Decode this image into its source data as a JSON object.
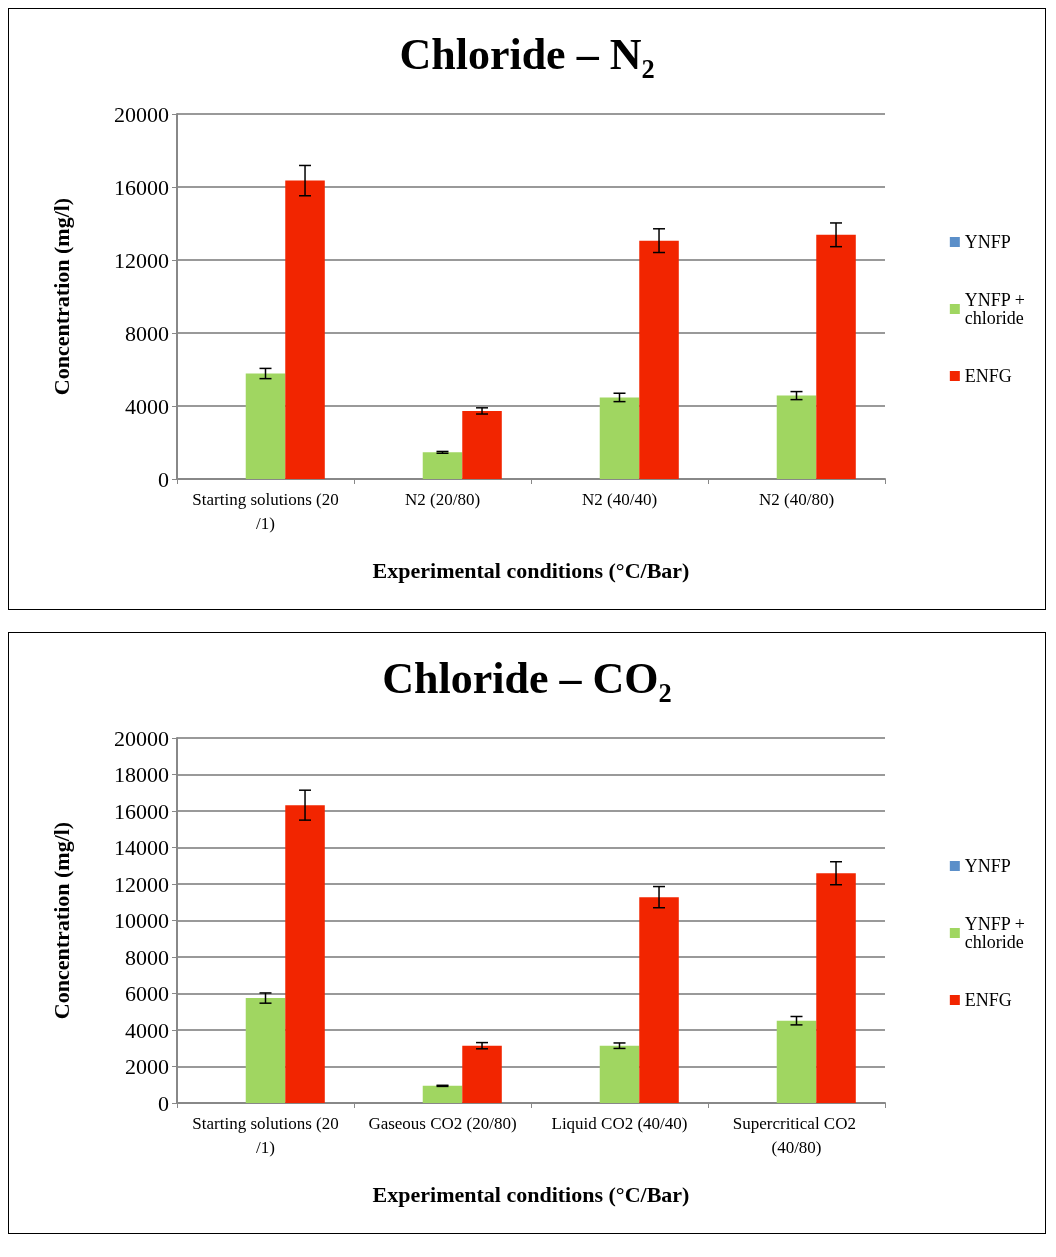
{
  "chart_data": [
    {
      "type": "bar",
      "title": "Chloride – N₂",
      "xlabel": "Experimental conditions (°C/Bar)",
      "ylabel": "Concentration (mg/l)",
      "categories": [
        "Starting solutions (20/1)",
        "N2 (20/80)",
        "N2 (40/40)",
        "N2 (40/80)"
      ],
      "series": [
        {
          "name": "YNFP",
          "color": "#5b8fc9",
          "values": [
            0,
            0,
            0,
            0
          ]
        },
        {
          "name": "YNFP + chloride",
          "color": "#a0d661",
          "values": [
            5780,
            1460,
            4470,
            4570
          ],
          "errors": [
            280,
            50,
            230,
            220
          ]
        },
        {
          "name": "ENFG",
          "color": "#f22500",
          "values": [
            16350,
            3730,
            13060,
            13380
          ],
          "errors": [
            830,
            170,
            650,
            650
          ]
        }
      ],
      "ylim": [
        0,
        20000
      ],
      "yticks": [
        0,
        4000,
        8000,
        12000,
        16000,
        20000
      ],
      "grid": "y",
      "legend": "right"
    },
    {
      "type": "bar",
      "title": "Chloride – CO₂",
      "xlabel": "Experimental conditions (°C/Bar)",
      "ylabel": "Concentration (mg/l)",
      "categories": [
        "Starting solutions (20/1)",
        "Gaseous CO2 (20/80)",
        "Liquid CO2 (40/40)",
        "Supercritical CO2 (40/80)"
      ],
      "series": [
        {
          "name": "YNFP",
          "color": "#5b8fc9",
          "values": [
            0,
            0,
            0,
            0
          ]
        },
        {
          "name": "YNFP + chloride",
          "color": "#a0d661",
          "values": [
            5750,
            940,
            3140,
            4510
          ],
          "errors": [
            280,
            30,
            150,
            230
          ]
        },
        {
          "name": "ENFG",
          "color": "#f22500",
          "values": [
            16320,
            3140,
            11280,
            12590
          ],
          "errors": [
            820,
            170,
            580,
            630
          ]
        }
      ],
      "ylim": [
        0,
        20000
      ],
      "yticks": [
        0,
        2000,
        4000,
        6000,
        8000,
        10000,
        12000,
        14000,
        16000,
        18000,
        20000
      ],
      "grid": "y",
      "legend": "right"
    }
  ]
}
